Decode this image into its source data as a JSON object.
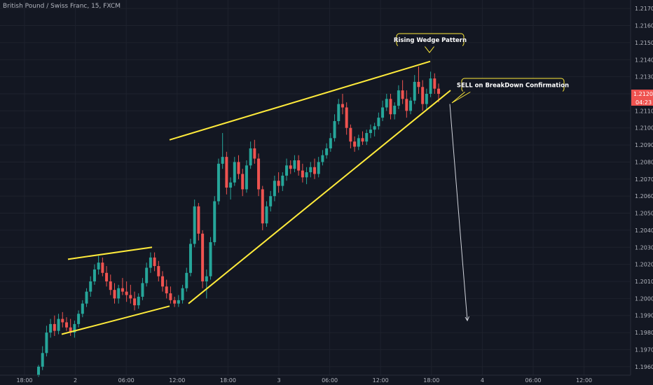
{
  "header": {
    "symbol_title": "British Pound / Swiss Franc, 15, FXCM"
  },
  "colors": {
    "background": "#131722",
    "grid": "#1e222d",
    "bull": "#26a69a",
    "bear": "#ef5350",
    "trendline": "#ffeb3b",
    "arrow": "#d1d4dc",
    "text": "#b2b5be"
  },
  "chart_data": {
    "type": "candlestick",
    "instrument": "British Pound / Swiss Franc",
    "timeframe": "15",
    "source": "FXCM",
    "ylim": [
      1.1955,
      1.2175
    ],
    "y_ticks": [
      "1.21700",
      "1.21600",
      "1.21500",
      "1.21400",
      "1.21300",
      "1.21200",
      "1.21100",
      "1.21000",
      "1.20900",
      "1.20800",
      "1.20700",
      "1.20600",
      "1.20500",
      "1.20400",
      "1.20300",
      "1.20200",
      "1.20100",
      "1.20000",
      "1.19900",
      "1.19800",
      "1.19700",
      "1.19600"
    ],
    "x_ticks": [
      "18:00",
      "2",
      "06:00",
      "12:00",
      "18:00",
      "3",
      "06:00",
      "12:00",
      "18:00",
      "4",
      "06:00",
      "12:00"
    ],
    "current_price": "1.21200",
    "countdown": "04:23",
    "trendlines": [
      {
        "name": "small-upper",
        "from": {
          "bar": 0,
          "price": 1.2023
        },
        "to": {
          "bar": 1,
          "price": 1.203
        }
      },
      {
        "name": "small-lower",
        "from": {
          "bar": 0,
          "price": 1.1979
        },
        "to": {
          "bar": 1,
          "price": 1.19955
        }
      },
      {
        "name": "wedge-upper",
        "from": {
          "bar": 0,
          "price": 1.2093
        },
        "to": {
          "bar": 1,
          "price": 1.2139
        }
      },
      {
        "name": "wedge-lower",
        "from": {
          "bar": 0,
          "price": 1.1997
        },
        "to": {
          "bar": 1,
          "price": 1.2122
        }
      }
    ],
    "annotations": [
      {
        "id": "wedge",
        "text": "Rising Wedge Pattern"
      },
      {
        "id": "sell",
        "text": "SELL on BreakDown Confirmation"
      }
    ],
    "projection_target": 1.1987,
    "candles": [
      [
        1.1955,
        1.1961,
        1.1954,
        1.196
      ],
      [
        1.196,
        1.1972,
        1.1958,
        1.1968
      ],
      [
        1.1968,
        1.1984,
        1.1966,
        1.198
      ],
      [
        1.198,
        1.1988,
        1.1977,
        1.1985
      ],
      [
        1.1985,
        1.199,
        1.1978,
        1.1981
      ],
      [
        1.1981,
        1.1991,
        1.1979,
        1.1988
      ],
      [
        1.1988,
        1.1992,
        1.1983,
        1.1986
      ],
      [
        1.1986,
        1.1989,
        1.1981,
        1.1983
      ],
      [
        1.1983,
        1.1988,
        1.1978,
        1.198
      ],
      [
        1.198,
        1.1987,
        1.1977,
        1.1985
      ],
      [
        1.1985,
        1.1993,
        1.1983,
        1.1991
      ],
      [
        1.1991,
        1.1999,
        1.1989,
        1.1997
      ],
      [
        1.1997,
        1.2006,
        1.1995,
        1.2004
      ],
      [
        1.2004,
        1.2013,
        1.2001,
        1.201
      ],
      [
        1.201,
        1.202,
        1.2008,
        1.2017
      ],
      [
        1.2017,
        1.2025,
        1.2014,
        1.2021
      ],
      [
        1.2021,
        1.2024,
        1.2013,
        1.2015
      ],
      [
        1.2015,
        1.2019,
        1.2007,
        1.201
      ],
      [
        1.201,
        1.2014,
        1.2002,
        1.2005
      ],
      [
        1.2005,
        1.2009,
        1.1997,
        1.2
      ],
      [
        1.2,
        1.2008,
        1.1997,
        1.2006
      ],
      [
        1.2006,
        1.2012,
        1.2002,
        1.2004
      ],
      [
        1.2004,
        1.201,
        1.1998,
        1.2002
      ],
      [
        1.2002,
        1.2008,
        1.1997,
        1.2
      ],
      [
        1.2,
        1.2004,
        1.1993,
        1.1996
      ],
      [
        1.1996,
        1.2003,
        1.1994,
        1.2001
      ],
      [
        1.2001,
        1.2012,
        1.1999,
        1.2009
      ],
      [
        1.2009,
        1.2021,
        1.2007,
        1.2018
      ],
      [
        1.2018,
        1.2027,
        1.2015,
        1.2024
      ],
      [
        1.2024,
        1.2027,
        1.2016,
        1.2019
      ],
      [
        1.2019,
        1.2022,
        1.201,
        1.2013
      ],
      [
        1.2013,
        1.2016,
        1.2004,
        1.2007
      ],
      [
        1.2007,
        1.2011,
        1.2,
        1.2003
      ],
      [
        1.2003,
        1.2007,
        1.1997,
        1.1999
      ],
      [
        1.1999,
        1.2001,
        1.1995,
        1.1997
      ],
      [
        1.1997,
        1.2002,
        1.1995,
        1.1999
      ],
      [
        1.1999,
        1.2008,
        1.1997,
        1.2006
      ],
      [
        1.2006,
        1.2018,
        1.2004,
        1.2015
      ],
      [
        1.2015,
        1.2035,
        1.2013,
        1.2032
      ],
      [
        1.2032,
        1.2058,
        1.203,
        1.2054
      ],
      [
        1.2054,
        1.2056,
        1.2034,
        1.2038
      ],
      [
        1.2038,
        1.204,
        1.2006,
        1.201
      ],
      [
        1.201,
        1.2017,
        1.2,
        1.2013
      ],
      [
        1.2013,
        1.2036,
        1.2011,
        1.2033
      ],
      [
        1.2033,
        1.206,
        1.2031,
        1.2057
      ],
      [
        1.2057,
        1.2082,
        1.2055,
        1.2079
      ],
      [
        1.2079,
        1.2097,
        1.2076,
        1.2083
      ],
      [
        1.2083,
        1.2086,
        1.2061,
        1.2065
      ],
      [
        1.2065,
        1.2071,
        1.2058,
        1.2068
      ],
      [
        1.2068,
        1.2083,
        1.2066,
        1.208
      ],
      [
        1.208,
        1.2084,
        1.207,
        1.2073
      ],
      [
        1.2073,
        1.2076,
        1.206,
        1.2064
      ],
      [
        1.2064,
        1.2081,
        1.2062,
        1.2078
      ],
      [
        1.2078,
        1.2092,
        1.2076,
        1.2088
      ],
      [
        1.2088,
        1.2093,
        1.2079,
        1.2082
      ],
      [
        1.2082,
        1.2085,
        1.206,
        1.2064
      ],
      [
        1.2064,
        1.2066,
        1.204,
        1.2044
      ],
      [
        1.2044,
        1.2057,
        1.2042,
        1.2054
      ],
      [
        1.2054,
        1.2063,
        1.2051,
        1.206
      ],
      [
        1.206,
        1.2072,
        1.2057,
        1.2069
      ],
      [
        1.2069,
        1.2074,
        1.2062,
        1.2066
      ],
      [
        1.2066,
        1.2074,
        1.2063,
        1.2072
      ],
      [
        1.2072,
        1.2082,
        1.2069,
        1.2078
      ],
      [
        1.2078,
        1.2081,
        1.2073,
        1.2076
      ],
      [
        1.2076,
        1.2084,
        1.2074,
        1.2081
      ],
      [
        1.2081,
        1.2084,
        1.2072,
        1.2075
      ],
      [
        1.2075,
        1.2079,
        1.2068,
        1.2071
      ],
      [
        1.2071,
        1.2077,
        1.2067,
        1.2074
      ],
      [
        1.2074,
        1.208,
        1.2071,
        1.2077
      ],
      [
        1.2077,
        1.2082,
        1.207,
        1.2073
      ],
      [
        1.2073,
        1.2083,
        1.2071,
        1.208
      ],
      [
        1.208,
        1.2087,
        1.2078,
        1.2084
      ],
      [
        1.2084,
        1.2091,
        1.2082,
        1.2088
      ],
      [
        1.2088,
        1.2097,
        1.2086,
        1.2094
      ],
      [
        1.2094,
        1.2108,
        1.2092,
        1.2104
      ],
      [
        1.2104,
        1.2117,
        1.2102,
        1.2114
      ],
      [
        1.2114,
        1.212,
        1.2108,
        1.2112
      ],
      [
        1.2112,
        1.2115,
        1.2096,
        1.21
      ],
      [
        1.21,
        1.2102,
        1.2088,
        1.2092
      ],
      [
        1.2092,
        1.2095,
        1.2086,
        1.2089
      ],
      [
        1.2089,
        1.2096,
        1.2087,
        1.2094
      ],
      [
        1.2094,
        1.2098,
        1.209,
        1.2092
      ],
      [
        1.2092,
        1.2099,
        1.209,
        1.2097
      ],
      [
        1.2097,
        1.2102,
        1.2094,
        1.2099
      ],
      [
        1.2099,
        1.2103,
        1.2095,
        1.2101
      ],
      [
        1.2101,
        1.2109,
        1.2099,
        1.2106
      ],
      [
        1.2106,
        1.2116,
        1.2104,
        1.2112
      ],
      [
        1.2112,
        1.212,
        1.211,
        1.2117
      ],
      [
        1.2117,
        1.212,
        1.2105,
        1.2108
      ],
      [
        1.2108,
        1.2115,
        1.2105,
        1.2113
      ],
      [
        1.2113,
        1.2125,
        1.2111,
        1.2122
      ],
      [
        1.2122,
        1.2128,
        1.2114,
        1.2117
      ],
      [
        1.2117,
        1.2122,
        1.2106,
        1.211
      ],
      [
        1.211,
        1.2118,
        1.2108,
        1.2116
      ],
      [
        1.2116,
        1.2131,
        1.2114,
        1.2127
      ],
      [
        1.2127,
        1.2136,
        1.212,
        1.2124
      ],
      [
        1.2124,
        1.2128,
        1.211,
        1.2114
      ],
      [
        1.2114,
        1.2123,
        1.2111,
        1.212
      ],
      [
        1.212,
        1.2133,
        1.2118,
        1.2129
      ],
      [
        1.2129,
        1.2132,
        1.212,
        1.2123
      ],
      [
        1.2123,
        1.2126,
        1.2115,
        1.212
      ]
    ]
  }
}
